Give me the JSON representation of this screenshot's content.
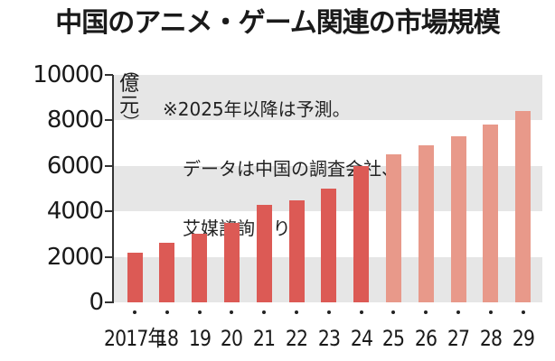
{
  "title": "中国のアニメ・ゲーム関連の市場規模",
  "unit_label": "億元",
  "unit_label_chars": [
    "（",
    "億",
    "元",
    "）"
  ],
  "note": {
    "line1": "※2025年以降は予測。",
    "line2": "データは中国の調査会社、",
    "line3": "艾媒諮詢より"
  },
  "colors": {
    "actual": "#dc5a55",
    "forecast": "#e8998a",
    "band": "#e6e6e6",
    "axis": "#333333"
  },
  "chart_data": {
    "type": "bar",
    "title": "中国のアニメ・ゲーム関連の市場規模",
    "xlabel": "",
    "ylabel": "億元",
    "ylim": [
      0,
      10000
    ],
    "yticks": [
      0,
      2000,
      4000,
      6000,
      8000,
      10000
    ],
    "ytick_labels": [
      "0",
      "2000",
      "4000",
      "6000",
      "8000",
      "10000"
    ],
    "grid": "alternating horizontal gray bands",
    "categories": [
      "2017年",
      "18",
      "19",
      "20",
      "21",
      "22",
      "23",
      "24",
      "25",
      "26",
      "27",
      "28",
      "29"
    ],
    "years": [
      2017,
      2018,
      2019,
      2020,
      2021,
      2022,
      2023,
      2024,
      2025,
      2026,
      2027,
      2028,
      2029
    ],
    "values": [
      2200,
      2600,
      3000,
      3500,
      4300,
      4500,
      5000,
      6000,
      6500,
      6900,
      7300,
      7800,
      8400
    ],
    "forecast_from": 2025,
    "annotations": [
      "※2025年以降は予測。データは中国の調査会社、艾媒諮詢より"
    ],
    "legend": null
  }
}
